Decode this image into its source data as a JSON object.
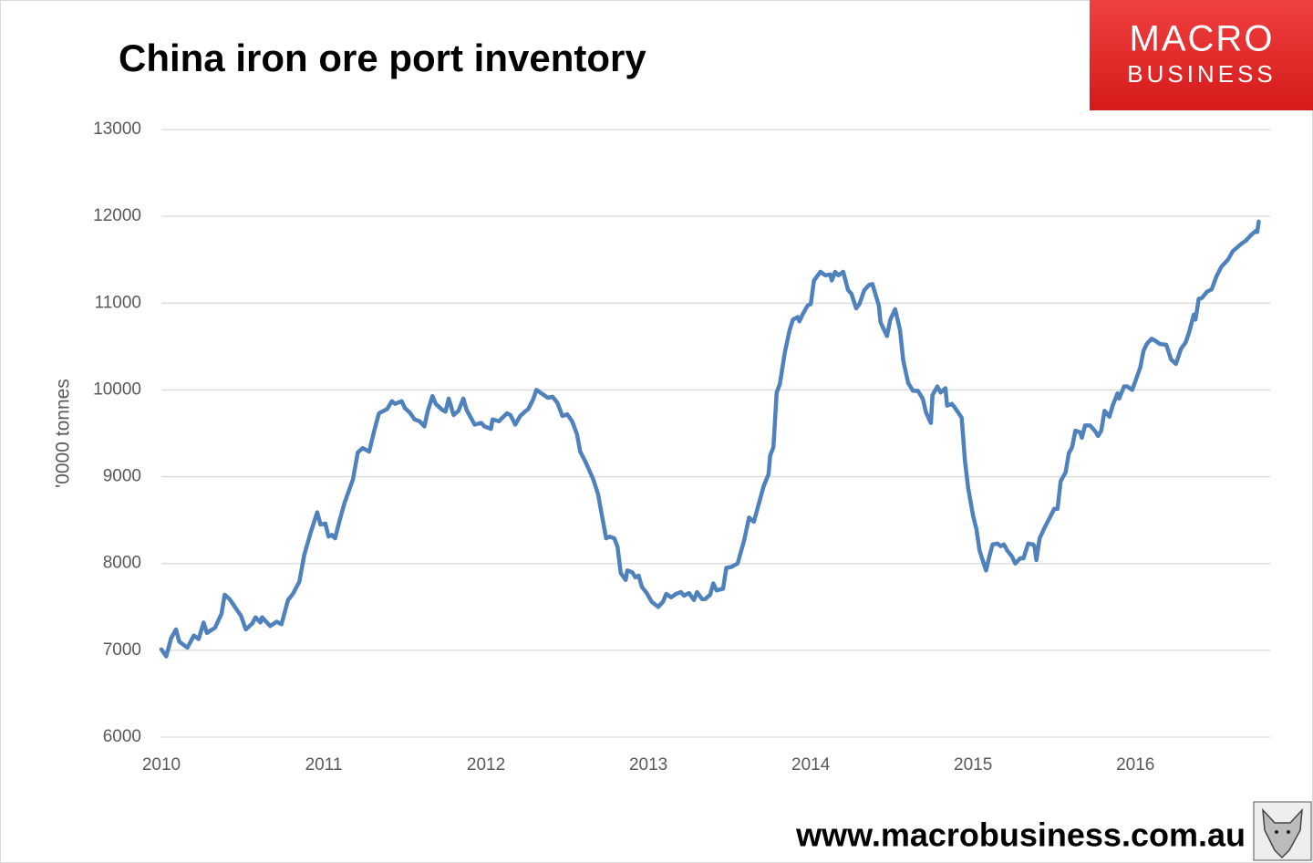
{
  "chart_data": {
    "type": "line",
    "title": "China iron ore port inventory",
    "ylabel": "'0000 tonnes",
    "x": [
      2010,
      2010.03,
      2010.06,
      2010.09,
      2010.11,
      2010.16,
      2010.2,
      2010.23,
      2010.26,
      2010.28,
      2010.33,
      2010.37,
      2010.39,
      2010.42,
      2010.46,
      2010.49,
      2010.52,
      2010.56,
      2010.58,
      2010.61,
      2010.62,
      2010.67,
      2010.71,
      2010.74,
      2010.78,
      2010.81,
      2010.85,
      2010.88,
      2010.92,
      2010.96,
      2010.98,
      2011.01,
      2011.03,
      2011.05,
      2011.07,
      2011.1,
      2011.13,
      2011.18,
      2011.21,
      2011.24,
      2011.28,
      2011.31,
      2011.34,
      2011.39,
      2011.42,
      2011.44,
      2011.48,
      2011.5,
      2011.53,
      2011.56,
      2011.59,
      2011.62,
      2011.64,
      2011.67,
      2011.69,
      2011.73,
      2011.75,
      2011.77,
      2011.8,
      2011.83,
      2011.86,
      2011.88,
      2011.93,
      2011.97,
      2011.99,
      2012.03,
      2012.04,
      2012.08,
      2012.1,
      2012.13,
      2012.15,
      2012.18,
      2012.21,
      2012.24,
      2012.26,
      2012.29,
      2012.31,
      2012.35,
      2012.38,
      2012.41,
      2012.44,
      2012.47,
      2012.5,
      2012.53,
      2012.56,
      2012.58,
      2012.61,
      2012.63,
      2012.66,
      2012.69,
      2012.71,
      2012.74,
      2012.76,
      2012.79,
      2012.81,
      2012.83,
      2012.86,
      2012.87,
      2012.9,
      2012.92,
      2012.94,
      2012.96,
      2012.99,
      2013.02,
      2013.06,
      2013.09,
      2013.11,
      2013.14,
      2013.17,
      2013.2,
      2013.22,
      2013.25,
      2013.28,
      2013.3,
      2013.33,
      2013.35,
      2013.38,
      2013.4,
      2013.42,
      2013.46,
      2013.48,
      2013.51,
      2013.55,
      2013.59,
      2013.62,
      2013.65,
      2013.68,
      2013.71,
      2013.74,
      2013.75,
      2013.77,
      2013.79,
      2013.81,
      2013.84,
      2013.87,
      2013.89,
      2013.92,
      2013.93,
      2013.95,
      2013.98,
      2014,
      2014.02,
      2014.06,
      2014.09,
      2014.12,
      2014.13,
      2014.15,
      2014.17,
      2014.2,
      2014.23,
      2014.25,
      2014.28,
      2014.3,
      2014.33,
      2014.36,
      2014.38,
      2014.42,
      2014.43,
      2014.47,
      2014.49,
      2014.52,
      2014.55,
      2014.57,
      2014.6,
      2014.63,
      2014.66,
      2014.69,
      2014.71,
      2014.74,
      2014.75,
      2014.78,
      2014.8,
      2014.83,
      2014.84,
      2014.87,
      2014.89,
      2014.93,
      2014.95,
      2014.97,
      2015,
      2015.02,
      2015.04,
      2015.08,
      2015.1,
      2015.12,
      2015.15,
      2015.17,
      2015.19,
      2015.21,
      2015.24,
      2015.26,
      2015.29,
      2015.31,
      2015.34,
      2015.37,
      2015.38,
      2015.39,
      2015.41,
      2015.44,
      2015.47,
      2015.5,
      2015.52,
      2015.54,
      2015.57,
      2015.59,
      2015.61,
      2015.63,
      2015.66,
      2015.67,
      2015.69,
      2015.72,
      2015.75,
      2015.77,
      2015.79,
      2015.81,
      2015.84,
      2015.86,
      2015.89,
      2015.9,
      2015.93,
      2015.95,
      2015.98,
      2016,
      2016.03,
      2016.05,
      2016.07,
      2016.1,
      2016.12,
      2016.15,
      2016.19,
      2016.22,
      2016.25,
      2016.28,
      2016.31,
      2016.33,
      2016.34,
      2016.36,
      2016.37,
      2016.39,
      2016.41,
      2016.44,
      2016.47,
      2016.5,
      2016.53,
      2016.57,
      2016.6,
      2016.62,
      2016.65,
      2016.68,
      2016.71,
      2016.74,
      2016.75,
      2016.76
    ],
    "values": [
      7010,
      6930,
      7140,
      7240,
      7100,
      7030,
      7170,
      7130,
      7320,
      7200,
      7260,
      7420,
      7640,
      7590,
      7480,
      7400,
      7240,
      7310,
      7380,
      7320,
      7380,
      7280,
      7330,
      7300,
      7580,
      7650,
      7790,
      8100,
      8360,
      8590,
      8450,
      8460,
      8310,
      8330,
      8290,
      8510,
      8710,
      8970,
      9280,
      9330,
      9290,
      9520,
      9730,
      9780,
      9870,
      9840,
      9870,
      9790,
      9740,
      9660,
      9640,
      9580,
      9750,
      9930,
      9840,
      9770,
      9750,
      9900,
      9710,
      9760,
      9900,
      9770,
      9600,
      9620,
      9580,
      9550,
      9660,
      9640,
      9680,
      9730,
      9710,
      9600,
      9700,
      9750,
      9780,
      9890,
      10000,
      9950,
      9910,
      9920,
      9850,
      9700,
      9720,
      9640,
      9490,
      9290,
      9180,
      9100,
      8970,
      8800,
      8590,
      8290,
      8310,
      8290,
      8190,
      7890,
      7810,
      7920,
      7900,
      7840,
      7860,
      7730,
      7660,
      7560,
      7500,
      7560,
      7650,
      7610,
      7650,
      7670,
      7630,
      7660,
      7580,
      7670,
      7590,
      7590,
      7640,
      7770,
      7690,
      7710,
      7950,
      7960,
      8000,
      8270,
      8530,
      8480,
      8690,
      8890,
      9030,
      9240,
      9340,
      9970,
      10070,
      10430,
      10690,
      10810,
      10840,
      10790,
      10870,
      10970,
      10990,
      11260,
      11360,
      11320,
      11330,
      11260,
      11360,
      11320,
      11360,
      11150,
      11110,
      10940,
      10990,
      11150,
      11210,
      11220,
      10970,
      10780,
      10620,
      10810,
      10930,
      10690,
      10340,
      10080,
      9990,
      9990,
      9900,
      9740,
      9620,
      9940,
      10040,
      9970,
      10020,
      9820,
      9840,
      9790,
      9680,
      9180,
      8870,
      8550,
      8400,
      8150,
      7920,
      8080,
      8220,
      8230,
      8200,
      8220,
      8150,
      8080,
      8000,
      8060,
      8060,
      8230,
      8220,
      8190,
      8040,
      8290,
      8410,
      8520,
      8630,
      8630,
      8950,
      9050,
      9270,
      9340,
      9530,
      9510,
      9450,
      9590,
      9590,
      9530,
      9470,
      9530,
      9760,
      9690,
      9820,
      9960,
      9900,
      10040,
      10040,
      10000,
      10100,
      10260,
      10450,
      10530,
      10590,
      10570,
      10530,
      10520,
      10350,
      10300,
      10470,
      10550,
      10660,
      10730,
      10870,
      10810,
      11050,
      11060,
      11130,
      11160,
      11310,
      11420,
      11500,
      11600,
      11630,
      11680,
      11720,
      11780,
      11830,
      11820,
      11940
    ],
    "color": "#4f81bd",
    "xlim": [
      2010,
      2016.83
    ],
    "xticks": [
      2010,
      2011,
      2012,
      2013,
      2014,
      2015,
      2016
    ],
    "ylim": [
      6000,
      13000
    ],
    "yticks": [
      6000,
      7000,
      8000,
      9000,
      10000,
      11000,
      12000,
      13000
    ],
    "grid": true
  },
  "branding": {
    "logo_top": "MACRO",
    "logo_bottom": "BUSINESS",
    "url": "www.macrobusiness.com.au"
  }
}
